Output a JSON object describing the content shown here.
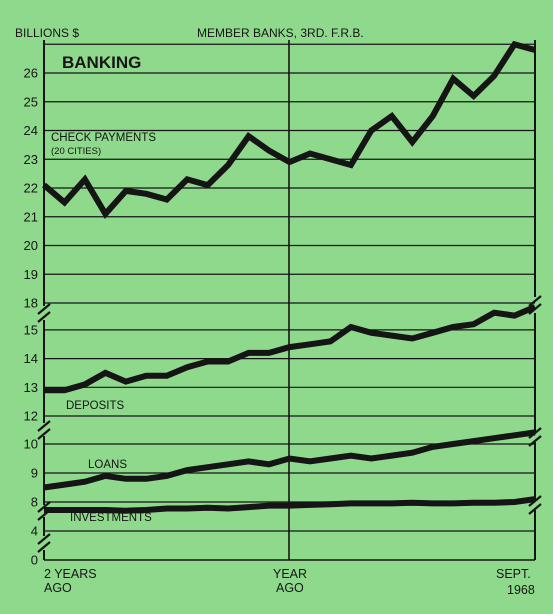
{
  "chart_data": {
    "type": "line",
    "header_left": "BILLIONS $",
    "header_center": "MEMBER BANKS, 3RD. F.R.B.",
    "title": "BANKING",
    "x_labels": {
      "left": [
        "2 YEARS",
        "AGO"
      ],
      "center": [
        "YEAR",
        "AGO"
      ],
      "right": [
        "SEPT.",
        "1968"
      ]
    },
    "y_ticks_upper": [
      "18",
      "19",
      "20",
      "21",
      "22",
      "23",
      "24",
      "25",
      "26"
    ],
    "y_ticks_middle": [
      "12",
      "13",
      "14",
      "15"
    ],
    "y_ticks_lower": [
      "0",
      "4",
      "8",
      "9",
      "10"
    ],
    "grid": true,
    "series": [
      {
        "name": "CHECK PAYMENTS (20 CITIES)",
        "label_lines": [
          "CHECK PAYMENTS",
          "(20 CITIES)"
        ],
        "values": [
          22.1,
          21.5,
          22.3,
          21.1,
          21.9,
          21.8,
          21.6,
          22.3,
          22.1,
          22.8,
          23.8,
          23.3,
          22.9,
          23.2,
          23.0,
          22.8,
          24.0,
          24.5,
          23.6,
          24.5,
          25.8,
          25.2,
          25.9,
          27.0,
          26.8
        ]
      },
      {
        "name": "DEPOSITS",
        "label_lines": [
          "DEPOSITS"
        ],
        "values": [
          12.9,
          12.9,
          13.1,
          13.5,
          13.2,
          13.4,
          13.4,
          13.7,
          13.9,
          13.9,
          14.2,
          14.2,
          14.4,
          14.5,
          14.6,
          15.1,
          14.9,
          14.8,
          14.7,
          14.9,
          15.1,
          15.2,
          15.6,
          15.5,
          15.8
        ]
      },
      {
        "name": "LOANS",
        "label_lines": [
          "LOANS"
        ],
        "values": [
          8.5,
          8.6,
          8.7,
          8.9,
          8.8,
          8.8,
          8.9,
          9.1,
          9.2,
          9.3,
          9.4,
          9.3,
          9.5,
          9.4,
          9.5,
          9.6,
          9.5,
          9.6,
          9.7,
          9.9,
          10.0,
          10.1,
          10.2,
          10.3,
          10.4
        ]
      },
      {
        "name": "INVESTMENTS",
        "label_lines": [
          "INVESTMENTS"
        ],
        "values": [
          6.9,
          6.9,
          6.9,
          6.9,
          6.8,
          6.9,
          7.1,
          7.1,
          7.2,
          7.1,
          7.3,
          7.5,
          7.5,
          7.6,
          7.7,
          7.8,
          7.8,
          7.8,
          7.9,
          7.8,
          7.8,
          7.9,
          7.9,
          8.0,
          8.1
        ]
      }
    ]
  }
}
